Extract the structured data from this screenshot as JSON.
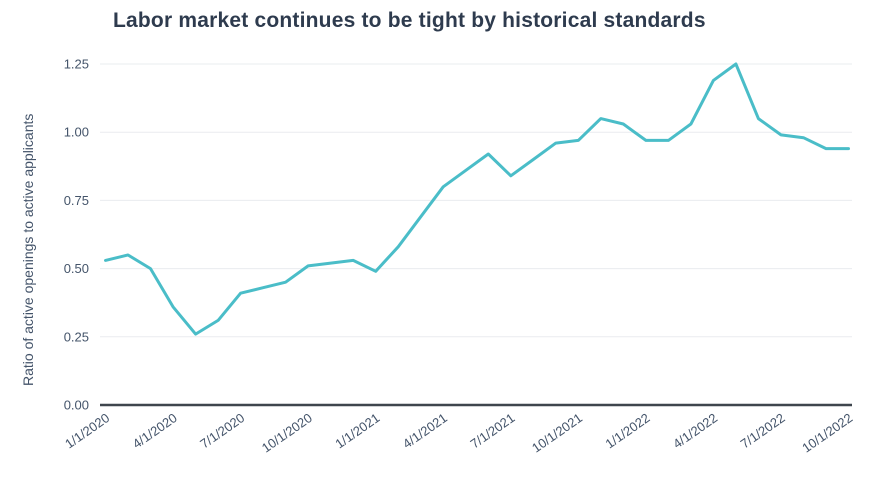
{
  "colors": {
    "line": "#4abdc8",
    "grid": "#eaecef",
    "axis": "#3e454d",
    "tick_text": "#44546a",
    "title_text": "#2e3b4e"
  },
  "chart_data": {
    "type": "line",
    "title": "Labor market continues to be tight by historical standards",
    "xlabel": "",
    "ylabel": "Ratio of active openings to active applicants",
    "legend": "none",
    "grid": "horizontal",
    "ylim": [
      0,
      1.25
    ],
    "line_color": "#4abdc8",
    "x": [
      "1/1/2020",
      "2/1/2020",
      "3/1/2020",
      "4/1/2020",
      "5/1/2020",
      "6/1/2020",
      "7/1/2020",
      "8/1/2020",
      "9/1/2020",
      "10/1/2020",
      "11/1/2020",
      "12/1/2020",
      "1/1/2021",
      "2/1/2021",
      "3/1/2021",
      "4/1/2021",
      "5/1/2021",
      "6/1/2021",
      "7/1/2021",
      "8/1/2021",
      "9/1/2021",
      "10/1/2021",
      "11/1/2021",
      "12/1/2021",
      "1/1/2022",
      "2/1/2022",
      "3/1/2022",
      "4/1/2022",
      "5/1/2022",
      "6/1/2022",
      "7/1/2022",
      "8/1/2022",
      "9/1/2022",
      "10/1/2022"
    ],
    "values": [
      0.53,
      0.55,
      0.5,
      0.36,
      0.26,
      0.31,
      0.41,
      0.43,
      0.45,
      0.51,
      0.52,
      0.53,
      0.49,
      0.58,
      0.69,
      0.8,
      0.86,
      0.92,
      0.84,
      0.9,
      0.96,
      0.97,
      1.05,
      1.03,
      0.97,
      0.97,
      1.03,
      1.19,
      1.25,
      1.05,
      0.99,
      0.98,
      0.94,
      0.94
    ],
    "xtick_labels": [
      "1/1/2020",
      "4/1/2020",
      "7/1/2020",
      "10/1/2020",
      "1/1/2021",
      "4/1/2021",
      "7/1/2021",
      "10/1/2021",
      "1/1/2022",
      "4/1/2022",
      "7/1/2022",
      "10/1/2022"
    ],
    "xtick_step": 3,
    "ytick_labels": [
      "0.00",
      "0.25",
      "0.50",
      "0.75",
      "1.00",
      "1.25"
    ]
  }
}
